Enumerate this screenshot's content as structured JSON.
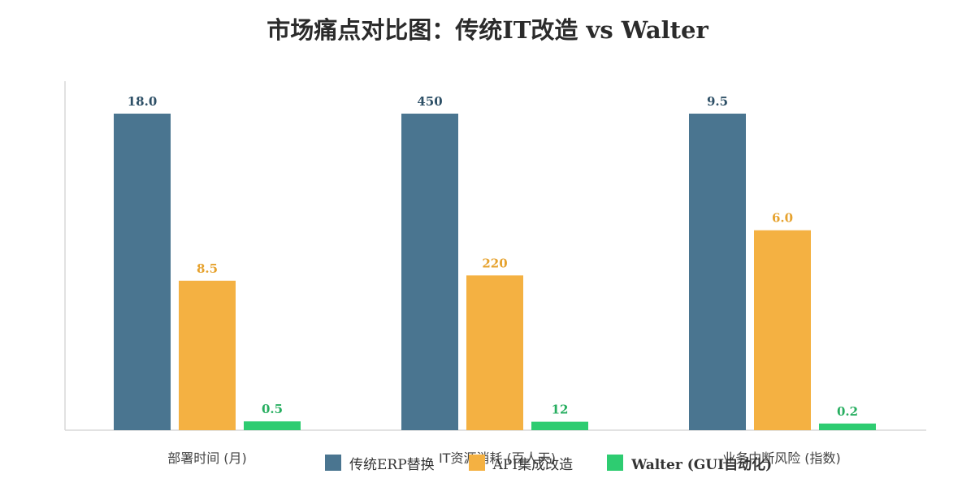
{
  "chart_data": {
    "type": "bar",
    "title": "市场痛点对比图：传统IT改造 vs Walter",
    "categories": [
      "部署时间 (月)",
      "IT资源消耗 (百人天)",
      "业务中断风险 (指数)"
    ],
    "series": [
      {
        "name": "传统ERP替换",
        "color": "#4a7590",
        "values": [
          18.0,
          450,
          9.5
        ],
        "labels": [
          "18.0",
          "450",
          "9.5"
        ]
      },
      {
        "name": "API集成改造",
        "color": "#f4b142",
        "values": [
          8.5,
          220,
          6.0
        ],
        "labels": [
          "8.5",
          "220",
          "6.0"
        ]
      },
      {
        "name": "Walter (GUI自动化)",
        "color": "#2ecc71",
        "values": [
          0.5,
          12,
          0.2
        ],
        "labels": [
          "0.5",
          "12",
          "0.2"
        ]
      }
    ],
    "category_max": [
      18.0,
      450,
      9.5
    ],
    "legend_position": "bottom-center",
    "grid": false
  }
}
